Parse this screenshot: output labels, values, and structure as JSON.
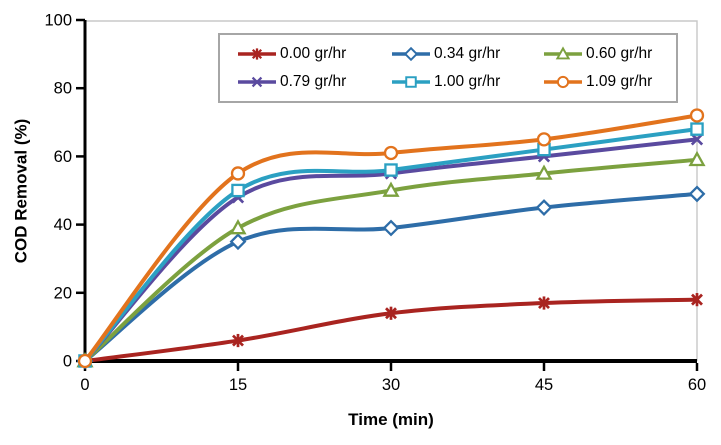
{
  "chart_data": {
    "type": "line",
    "title": "",
    "xlabel": "Time (min)",
    "ylabel": "COD Removal (%)",
    "x": [
      0,
      15,
      30,
      45,
      60
    ],
    "xlim": [
      0,
      60
    ],
    "ylim": [
      0,
      100
    ],
    "x_ticks": [
      0,
      15,
      30,
      45,
      60
    ],
    "y_ticks": [
      0,
      20,
      40,
      60,
      80,
      100
    ],
    "grid": false,
    "smooth_lines": true,
    "legend_position": "top-center",
    "series": [
      {
        "name": "0.00 gr/hr",
        "color": "#a92420",
        "marker": "asterisk",
        "values": [
          0,
          6,
          14,
          17,
          18
        ]
      },
      {
        "name": "0.34 gr/hr",
        "color": "#2e6da8",
        "marker": "diamond",
        "values": [
          0,
          35,
          39,
          45,
          49
        ]
      },
      {
        "name": "0.60 gr/hr",
        "color": "#7ca13f",
        "marker": "triangle",
        "values": [
          0,
          39,
          50,
          55,
          59
        ]
      },
      {
        "name": "0.79 gr/hr",
        "color": "#5a4a9f",
        "marker": "x",
        "values": [
          0,
          48,
          55,
          60,
          65
        ]
      },
      {
        "name": "1.00 gr/hr",
        "color": "#2ba0c2",
        "marker": "square",
        "values": [
          0,
          50,
          56,
          62,
          68
        ]
      },
      {
        "name": "1.09 gr/hr",
        "color": "#e2731d",
        "marker": "circle",
        "values": [
          0,
          55,
          61,
          65,
          72
        ]
      }
    ],
    "colors": {
      "axis": "#000000",
      "plot_border": "#c8c8c8",
      "legend_border": "#a6a6a6",
      "background": "#ffffff",
      "text": "#000000"
    }
  }
}
